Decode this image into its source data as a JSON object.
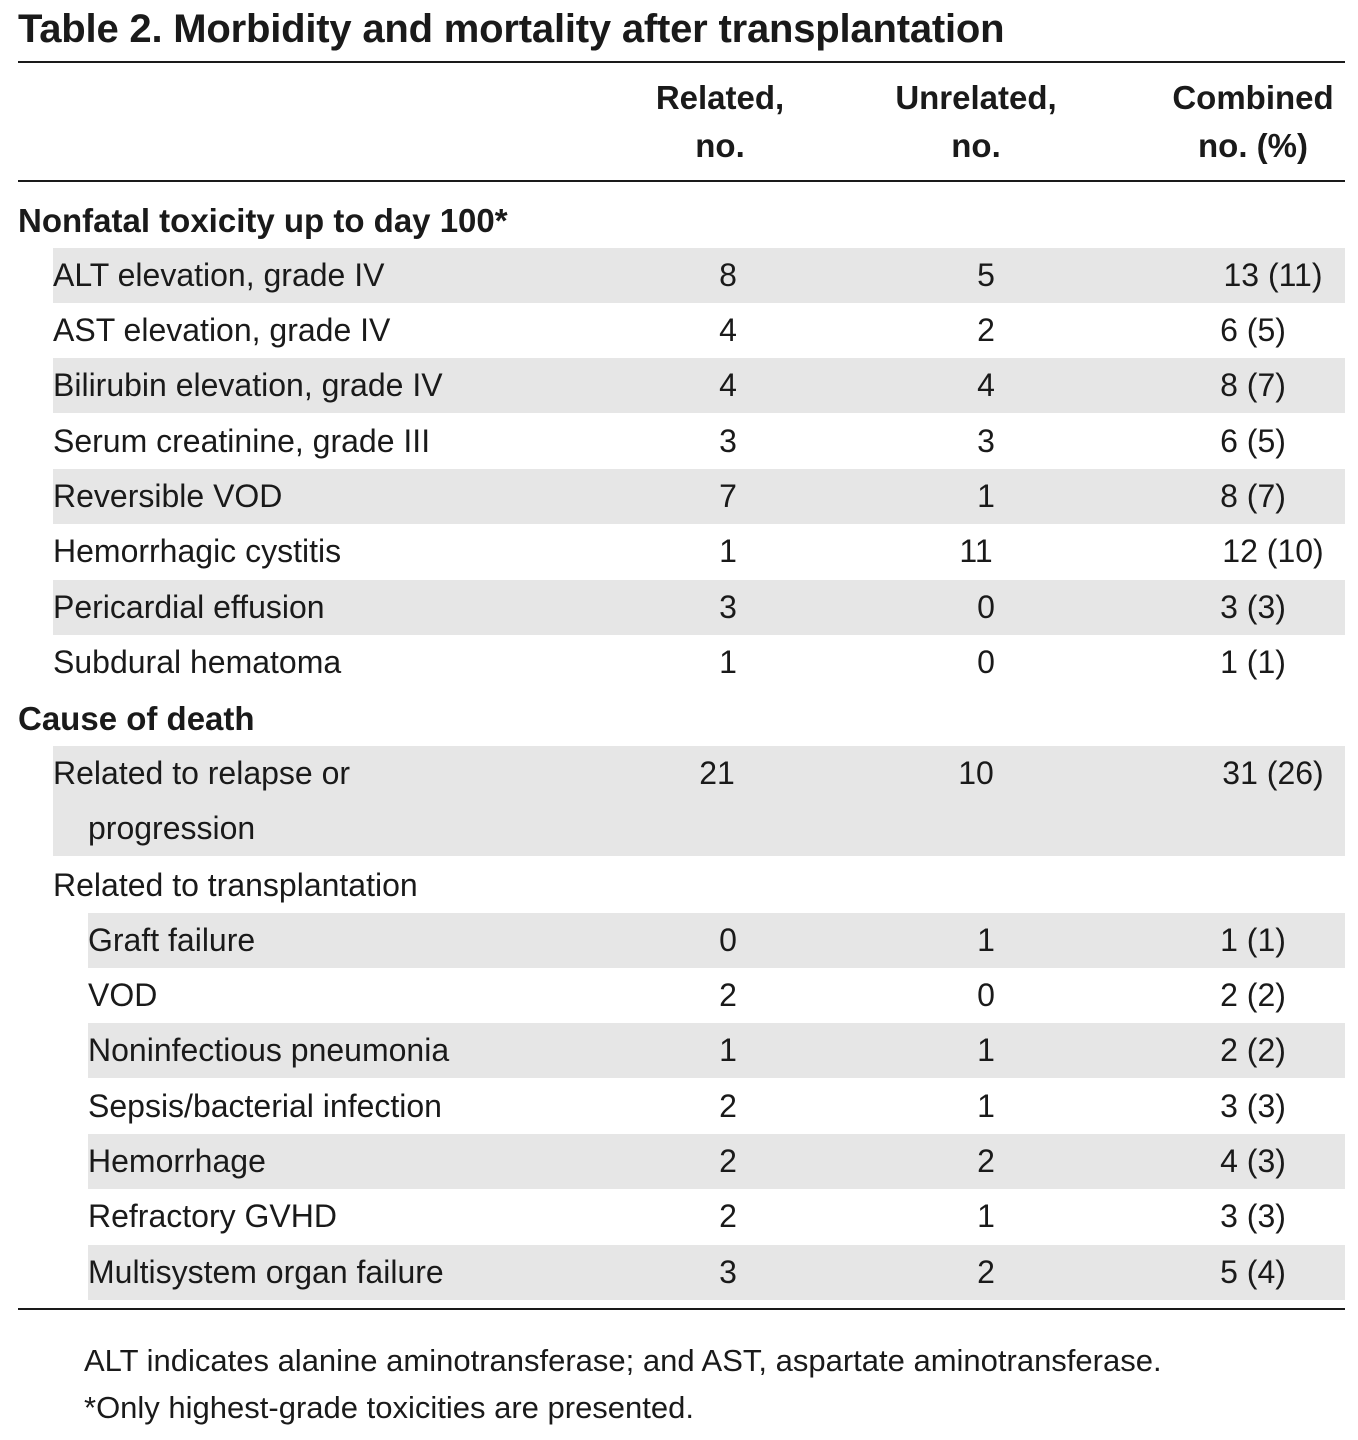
{
  "title": "Table 2. Morbidity and mortality after transplantation",
  "columns": {
    "related": [
      "Related,",
      "no."
    ],
    "unrelated": [
      "Unrelated,",
      "no."
    ],
    "combined": [
      "Combined",
      "no. (%)"
    ]
  },
  "sections": [
    {
      "heading": "Nonfatal toxicity up to day 100*",
      "rows": [
        {
          "label": "ALT elevation, grade IV",
          "related": "8",
          "unrelated": "5",
          "combined": "13 (11)"
        },
        {
          "label": "AST elevation, grade IV",
          "related": "4",
          "unrelated": "2",
          "combined": "6 (5)"
        },
        {
          "label": "Bilirubin elevation, grade IV",
          "related": "4",
          "unrelated": "4",
          "combined": "8 (7)"
        },
        {
          "label": "Serum creatinine, grade III",
          "related": "3",
          "unrelated": "3",
          "combined": "6 (5)"
        },
        {
          "label": "Reversible VOD",
          "related": "7",
          "unrelated": "1",
          "combined": "8 (7)"
        },
        {
          "label": "Hemorrhagic cystitis",
          "related": "1",
          "unrelated": "11",
          "combined": "12 (10)"
        },
        {
          "label": "Pericardial effusion",
          "related": "3",
          "unrelated": "0",
          "combined": "3 (3)"
        },
        {
          "label": "Subdural hematoma",
          "related": "1",
          "unrelated": "0",
          "combined": "1 (1)"
        }
      ]
    },
    {
      "heading": "Cause of death",
      "relapse": {
        "label_line1": "Related to relapse or",
        "label_line2": "progression",
        "related": "21",
        "unrelated": "10",
        "combined": "31 (26)"
      },
      "transplant_heading": "Related to transplantation",
      "rows": [
        {
          "label": "Graft failure",
          "related": "0",
          "unrelated": "1",
          "combined": "1 (1)"
        },
        {
          "label": "VOD",
          "related": "2",
          "unrelated": "0",
          "combined": "2 (2)"
        },
        {
          "label": "Noninfectious pneumonia",
          "related": "1",
          "unrelated": "1",
          "combined": "2 (2)"
        },
        {
          "label": "Sepsis/bacterial infection",
          "related": "2",
          "unrelated": "1",
          "combined": "3 (3)"
        },
        {
          "label": "Hemorrhage",
          "related": "2",
          "unrelated": "2",
          "combined": "4 (3)"
        },
        {
          "label": "Refractory GVHD",
          "related": "2",
          "unrelated": "1",
          "combined": "3 (3)"
        },
        {
          "label": "Multisystem organ failure",
          "related": "3",
          "unrelated": "2",
          "combined": "5 (4)"
        }
      ]
    }
  ],
  "footnotes": [
    "ALT indicates alanine aminotransferase; and AST, aspartate aminotransferase.",
    "*Only highest-grade toxicities are presented."
  ]
}
